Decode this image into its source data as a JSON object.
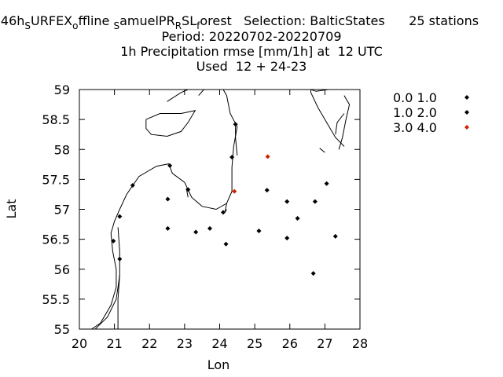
{
  "title": {
    "line1": {
      "parts": [
        {
          "t": "46h",
          "sub": false
        },
        {
          "t": "S",
          "sub": true
        },
        {
          "t": "URFEX",
          "sub": false
        },
        {
          "t": "o",
          "sub": true
        },
        {
          "t": "ffline ",
          "sub": false
        },
        {
          "t": "S",
          "sub": true
        },
        {
          "t": "amuelPR",
          "sub": false
        },
        {
          "t": "R",
          "sub": true
        },
        {
          "t": "SL",
          "sub": false
        },
        {
          "t": "f",
          "sub": true
        },
        {
          "t": "orest   Selection: BalticStates      25 stations",
          "sub": false
        }
      ]
    },
    "line2": "Period: 20220702-20220709",
    "line3": "1h Precipitation rmse [mm/1h] at  12 UTC",
    "line4": "Used  12 + 24-23"
  },
  "chart_data": {
    "type": "scatter",
    "xlabel": "Lon",
    "ylabel": "Lat",
    "xlim": [
      20,
      28
    ],
    "ylim": [
      55,
      59
    ],
    "xticks": [
      "20",
      "21",
      "22",
      "23",
      "24",
      "25",
      "26",
      "27",
      "28"
    ],
    "yticks": [
      "55",
      "55.5",
      "56",
      "56.5",
      "57",
      "57.5",
      "58",
      "58.5",
      "59"
    ],
    "grid": false,
    "legend_position": "top-right outside",
    "series": [
      {
        "name": "0.0 1.0",
        "color": "#000000",
        "points": []
      },
      {
        "name": "1.0 2.0",
        "color": "#000000",
        "points": [
          [
            24.45,
            58.42
          ],
          [
            24.35,
            57.87
          ],
          [
            22.58,
            57.73
          ],
          [
            21.52,
            57.4
          ],
          [
            23.1,
            57.33
          ],
          [
            25.35,
            57.32
          ],
          [
            27.05,
            57.43
          ],
          [
            22.52,
            57.17
          ],
          [
            25.92,
            57.13
          ],
          [
            26.72,
            57.13
          ],
          [
            24.1,
            56.95
          ],
          [
            21.15,
            56.88
          ],
          [
            26.22,
            56.85
          ],
          [
            22.52,
            56.68
          ],
          [
            23.72,
            56.68
          ],
          [
            23.32,
            56.62
          ],
          [
            25.12,
            56.64
          ],
          [
            25.92,
            56.52
          ],
          [
            27.3,
            56.55
          ],
          [
            20.97,
            56.47
          ],
          [
            24.18,
            56.42
          ],
          [
            21.15,
            56.17
          ],
          [
            26.67,
            55.93
          ]
        ]
      },
      {
        "name": "3.0 4.0",
        "color": "#cc2200",
        "points": [
          [
            25.37,
            57.88
          ],
          [
            24.42,
            57.3
          ]
        ]
      }
    ]
  }
}
